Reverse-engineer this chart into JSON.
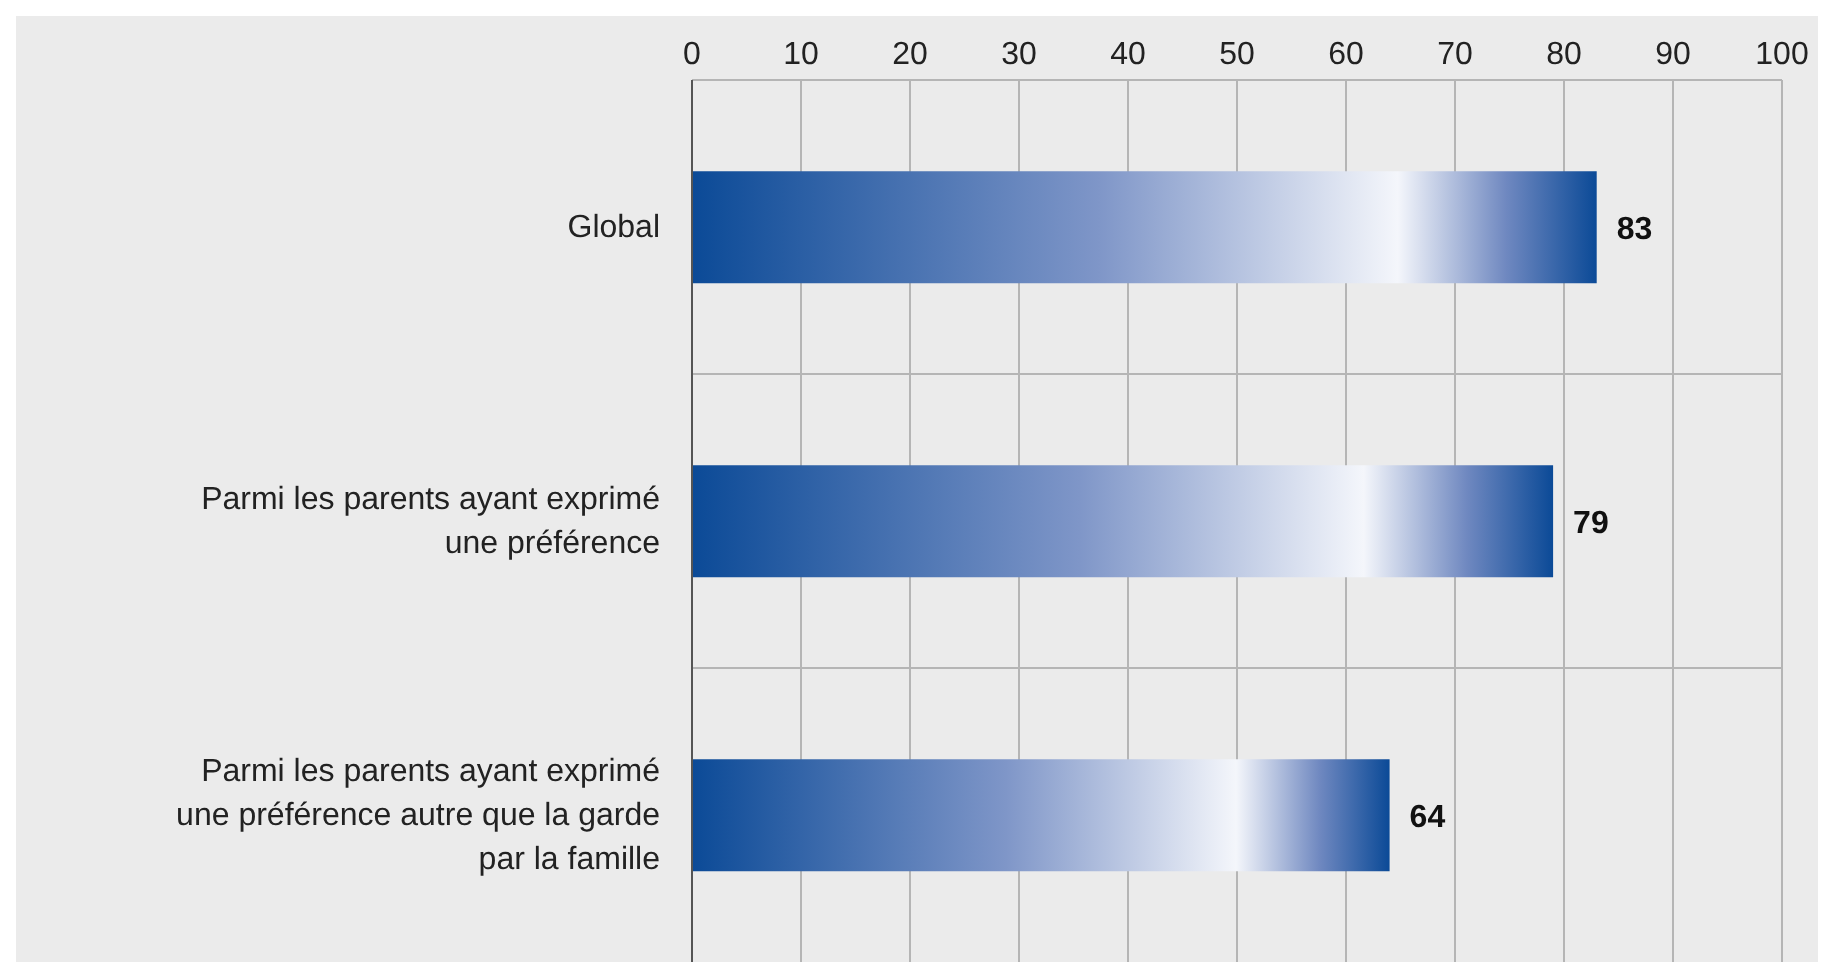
{
  "chart_data": {
    "type": "bar",
    "orientation": "horizontal",
    "categories": [
      "Global",
      "Parmi les parents ayant exprimé une préférence",
      "Parmi les parents ayant exprimé une préférence autre que la garde par la famille"
    ],
    "values": [
      83,
      79,
      64
    ],
    "color": "#0b4a97",
    "data_labels": true,
    "xlim": [
      0,
      100
    ],
    "xticks": [
      0,
      10,
      20,
      30,
      40,
      50,
      60,
      70,
      80,
      90,
      100
    ],
    "grid": true
  }
}
